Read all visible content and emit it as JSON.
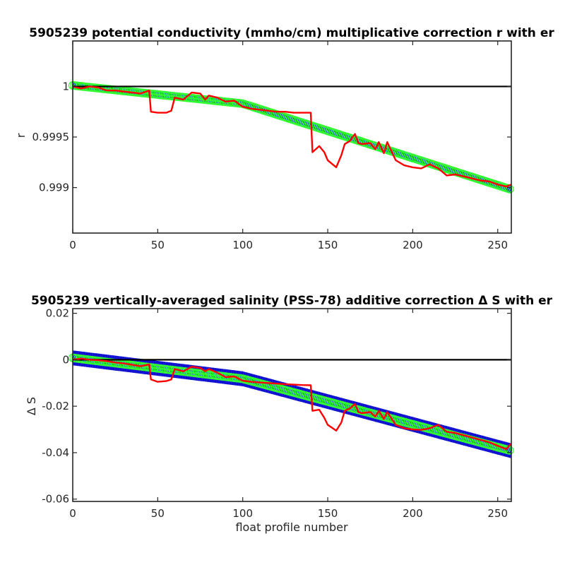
{
  "chart_data": [
    {
      "type": "line",
      "title": "5905239 potential conductivity (mmho/cm) multiplicative correction r with er",
      "xlabel": "",
      "ylabel": "r",
      "xlim": [
        0,
        258
      ],
      "ylim": [
        0.99855,
        1.00045
      ],
      "x_ticks": [
        0,
        50,
        100,
        150,
        200,
        250
      ],
      "y_ticks": [
        0.999,
        0.9995,
        1
      ],
      "x_tick_labels": [
        "0",
        "50",
        "100",
        "150",
        "200",
        "250"
      ],
      "y_tick_labels": [
        "0.999",
        "0.9995",
        "1"
      ],
      "grid": false,
      "reference_line": 1.0,
      "fit": {
        "x": [
          0,
          100,
          258
        ],
        "center": [
          1.00001,
          0.99983,
          0.99898
        ],
        "error_half_width": 4e-05
      },
      "series": [
        {
          "color": "#ff0000",
          "x": [
            0,
            5,
            10,
            15,
            20,
            25,
            30,
            35,
            40,
            45,
            46,
            50,
            55,
            58,
            60,
            65,
            70,
            75,
            78,
            80,
            85,
            90,
            95,
            100,
            105,
            110,
            115,
            120,
            125,
            130,
            135,
            140,
            141,
            145,
            148,
            150,
            155,
            158,
            160,
            163,
            166,
            168,
            170,
            175,
            178,
            180,
            183,
            185,
            190,
            195,
            200,
            205,
            210,
            215,
            220,
            225,
            230,
            235,
            240,
            245,
            250,
            255,
            258
          ],
          "y": [
            1.0,
            0.99998,
            1.0,
            0.99999,
            0.99996,
            0.99996,
            0.99995,
            0.99994,
            0.99993,
            0.99996,
            0.99975,
            0.99974,
            0.99974,
            0.99976,
            0.99989,
            0.99987,
            0.99994,
            0.99993,
            0.99987,
            0.99991,
            0.99989,
            0.99985,
            0.99986,
            0.9998,
            0.99978,
            0.99977,
            0.99976,
            0.99975,
            0.99975,
            0.99974,
            0.99974,
            0.99974,
            0.99935,
            0.99941,
            0.99935,
            0.99927,
            0.9992,
            0.99932,
            0.99943,
            0.99946,
            0.99953,
            0.99944,
            0.99943,
            0.99944,
            0.99938,
            0.99945,
            0.99934,
            0.99945,
            0.99927,
            0.99922,
            0.9992,
            0.99919,
            0.99923,
            0.99919,
            0.99912,
            0.99913,
            0.99911,
            0.99909,
            0.99907,
            0.99906,
            0.99903,
            0.99901,
            0.99903
          ]
        }
      ]
    },
    {
      "type": "line",
      "title": "5905239 vertically-averaged salinity (PSS-78) additive correction Δ S with er",
      "xlabel": "float profile number",
      "ylabel": "Δ S",
      "xlim": [
        0,
        258
      ],
      "ylim": [
        -0.061,
        0.022
      ],
      "x_ticks": [
        0,
        50,
        100,
        150,
        200,
        250
      ],
      "y_ticks": [
        -0.06,
        -0.04,
        -0.02,
        0,
        0.02
      ],
      "x_tick_labels": [
        "0",
        "50",
        "100",
        "150",
        "200",
        "250"
      ],
      "y_tick_labels": [
        "-0.06",
        "-0.04",
        "-0.02",
        "0",
        "0.02"
      ],
      "grid": false,
      "reference_line": 0,
      "fit": {
        "x": [
          0,
          100,
          258
        ],
        "center": [
          0.0008,
          -0.0082,
          -0.0392
        ],
        "error_half_width": 0.0032
      },
      "series": [
        {
          "color": "#ff0000",
          "x": [
            0,
            5,
            10,
            15,
            20,
            25,
            30,
            35,
            40,
            45,
            46,
            50,
            55,
            58,
            60,
            65,
            70,
            75,
            78,
            80,
            85,
            90,
            95,
            100,
            105,
            110,
            115,
            120,
            125,
            130,
            135,
            140,
            141,
            145,
            148,
            150,
            155,
            158,
            160,
            163,
            166,
            168,
            170,
            175,
            178,
            180,
            183,
            185,
            190,
            195,
            200,
            205,
            210,
            215,
            220,
            225,
            230,
            235,
            240,
            245,
            250,
            255,
            258
          ],
          "y": [
            0.0,
            0.0005,
            0.0,
            -0.0002,
            -0.0006,
            -0.0012,
            -0.0016,
            -0.0022,
            -0.0028,
            -0.002,
            -0.0085,
            -0.0095,
            -0.0092,
            -0.0085,
            -0.004,
            -0.005,
            -0.003,
            -0.0035,
            -0.005,
            -0.004,
            -0.0055,
            -0.0075,
            -0.0072,
            -0.009,
            -0.0095,
            -0.0098,
            -0.01,
            -0.0103,
            -0.0105,
            -0.0107,
            -0.0109,
            -0.011,
            -0.022,
            -0.0215,
            -0.025,
            -0.028,
            -0.0305,
            -0.027,
            -0.022,
            -0.021,
            -0.019,
            -0.0225,
            -0.023,
            -0.0225,
            -0.0245,
            -0.022,
            -0.0255,
            -0.0225,
            -0.028,
            -0.0295,
            -0.03,
            -0.0302,
            -0.0295,
            -0.028,
            -0.031,
            -0.0315,
            -0.0325,
            -0.0335,
            -0.0345,
            -0.0355,
            -0.037,
            -0.0385,
            -0.036
          ]
        }
      ]
    }
  ]
}
